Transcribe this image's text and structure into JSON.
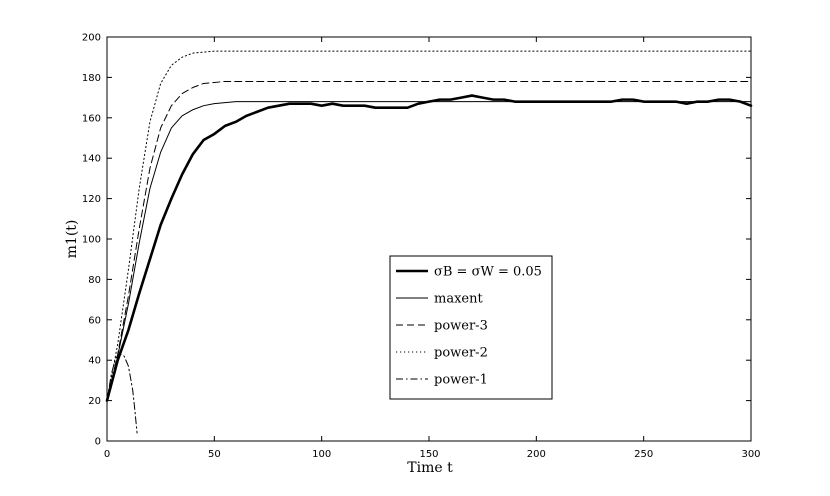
{
  "chart_data": {
    "type": "line",
    "title": "",
    "xlabel": "Time t",
    "ylabel": "m1(t)",
    "xlim": [
      0,
      300
    ],
    "ylim": [
      0,
      200
    ],
    "xticks": [
      0,
      50,
      100,
      150,
      200,
      250,
      300
    ],
    "yticks": [
      0,
      20,
      40,
      60,
      80,
      100,
      120,
      140,
      160,
      180,
      200
    ],
    "grid": false,
    "legend_position": "center-right",
    "series": [
      {
        "name": "σB = σW = 0.05",
        "style": "thick-solid",
        "color": "#000000",
        "x": [
          0,
          5,
          10,
          15,
          20,
          25,
          30,
          35,
          40,
          45,
          50,
          55,
          60,
          65,
          70,
          75,
          80,
          85,
          90,
          95,
          100,
          105,
          110,
          115,
          120,
          125,
          130,
          135,
          140,
          145,
          150,
          155,
          160,
          165,
          170,
          175,
          180,
          185,
          190,
          195,
          200,
          205,
          210,
          215,
          220,
          225,
          230,
          235,
          240,
          245,
          250,
          255,
          260,
          265,
          270,
          275,
          280,
          285,
          290,
          295,
          300
        ],
        "y": [
          20,
          40,
          55,
          73,
          90,
          107,
          120,
          132,
          142,
          149,
          152,
          156,
          158,
          161,
          163,
          165,
          166,
          167,
          167,
          167,
          166,
          167,
          166,
          166,
          166,
          165,
          165,
          165,
          165,
          167,
          168,
          169,
          169,
          170,
          171,
          170,
          169,
          169,
          168,
          168,
          168,
          168,
          168,
          168,
          168,
          168,
          168,
          168,
          169,
          169,
          168,
          168,
          168,
          168,
          167,
          168,
          168,
          169,
          169,
          168,
          166
        ]
      },
      {
        "name": "maxent",
        "style": "solid",
        "color": "#000000",
        "x": [
          0,
          5,
          10,
          15,
          20,
          25,
          30,
          35,
          40,
          45,
          50,
          55,
          60,
          70,
          80,
          100,
          150,
          200,
          250,
          300
        ],
        "y": [
          20,
          42,
          68,
          98,
          125,
          143,
          155,
          161,
          164,
          166,
          167,
          167.5,
          168,
          168,
          168,
          168,
          168,
          168,
          168,
          168
        ]
      },
      {
        "name": "power-3",
        "style": "dashed",
        "color": "#000000",
        "x": [
          0,
          5,
          10,
          15,
          20,
          25,
          30,
          35,
          40,
          45,
          50,
          55,
          60,
          70,
          80,
          100,
          150,
          200,
          250,
          300
        ],
        "y": [
          20,
          43,
          72,
          105,
          135,
          155,
          166,
          172,
          175,
          177,
          177.5,
          178,
          178,
          178,
          178,
          178,
          178,
          178,
          178,
          178
        ]
      },
      {
        "name": "power-2",
        "style": "dotted",
        "color": "#000000",
        "x": [
          0,
          5,
          10,
          15,
          20,
          25,
          30,
          35,
          40,
          45,
          50,
          55,
          60,
          70,
          80,
          100,
          150,
          200,
          250,
          300
        ],
        "y": [
          20,
          48,
          85,
          125,
          158,
          177,
          186,
          190,
          192,
          192.5,
          193,
          193,
          193,
          193,
          193,
          193,
          193,
          193,
          193,
          193
        ]
      },
      {
        "name": "power-1",
        "style": "dashdot",
        "color": "#000000",
        "x": [
          0,
          2,
          4,
          6,
          8,
          10,
          12,
          13,
          14
        ],
        "y": [
          20,
          33,
          41,
          43,
          42,
          37,
          25,
          15,
          4
        ]
      }
    ]
  }
}
